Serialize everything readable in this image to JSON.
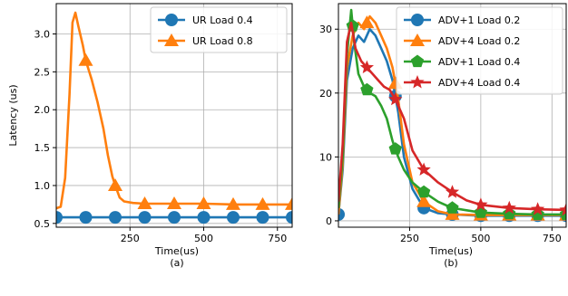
{
  "chart_data": [
    {
      "type": "line",
      "caption": "(a)",
      "xlabel": "Time(us)",
      "ylabel": "Latency (us)",
      "xlim": [
        0,
        800
      ],
      "ylim": [
        0.45,
        3.4
      ],
      "xticks": [
        250,
        500,
        750
      ],
      "yticks": [
        0.5,
        1.0,
        1.5,
        2.0,
        2.5,
        3.0
      ],
      "ytick_labels": [
        "0.5",
        "1.0",
        "1.5",
        "2.0",
        "2.5",
        "3.0"
      ],
      "grid": true,
      "legend": "top-right",
      "series": [
        {
          "name": "UR Load 0.4",
          "color": "#1f77b4",
          "marker": "circle",
          "x": [
            0,
            100,
            200,
            300,
            400,
            500,
            600,
            700,
            800
          ],
          "y": [
            0.58,
            0.58,
            0.58,
            0.58,
            0.58,
            0.58,
            0.58,
            0.58,
            0.58
          ],
          "marker_x": [
            0,
            100,
            200,
            300,
            400,
            500,
            600,
            700,
            800
          ]
        },
        {
          "name": "UR Load 0.8",
          "color": "#ff7f0e",
          "marker": "triangle",
          "x": [
            0,
            15,
            30,
            45,
            55,
            65,
            75,
            90,
            100,
            120,
            140,
            160,
            175,
            190,
            200,
            215,
            230,
            260,
            300,
            400,
            500,
            600,
            700,
            800
          ],
          "y": [
            0.7,
            0.72,
            1.1,
            2.2,
            3.15,
            3.28,
            3.1,
            2.85,
            2.65,
            2.4,
            2.1,
            1.75,
            1.4,
            1.12,
            1.0,
            0.84,
            0.79,
            0.77,
            0.76,
            0.76,
            0.76,
            0.75,
            0.75,
            0.75
          ],
          "marker_x": [
            100,
            200,
            300,
            400,
            500,
            600,
            700,
            800
          ]
        }
      ]
    },
    {
      "type": "line",
      "caption": "(b)",
      "xlabel": "Time(us)",
      "ylabel": "",
      "xlim": [
        0,
        800
      ],
      "ylim": [
        -1,
        34
      ],
      "xticks": [
        250,
        500,
        750
      ],
      "yticks": [
        0,
        10,
        20,
        30
      ],
      "ytick_labels": [
        "0",
        "10",
        "20",
        "30"
      ],
      "grid": true,
      "legend": "top-right",
      "series": [
        {
          "name": "ADV+1 Load 0.2",
          "color": "#1f77b4",
          "marker": "circle",
          "x": [
            0,
            15,
            30,
            50,
            70,
            90,
            110,
            130,
            150,
            170,
            190,
            210,
            230,
            260,
            300,
            350,
            400,
            500,
            600,
            700,
            800
          ],
          "y": [
            1,
            8,
            22,
            27,
            29,
            28,
            30,
            29,
            27,
            25,
            22,
            17,
            10,
            5,
            2,
            1.2,
            1,
            0.8,
            0.8,
            0.8,
            0.8
          ],
          "marker_x": [
            0,
            200,
            300,
            400,
            500,
            600,
            700,
            800
          ]
        },
        {
          "name": "ADV+4 Load 0.2",
          "color": "#ff7f0e",
          "marker": "triangle",
          "x": [
            0,
            15,
            30,
            50,
            70,
            90,
            110,
            130,
            150,
            170,
            190,
            210,
            230,
            260,
            300,
            350,
            400,
            500,
            600,
            700,
            800
          ],
          "y": [
            1,
            9,
            24,
            29,
            31,
            30,
            32,
            31,
            29,
            27,
            24,
            19,
            12,
            6,
            3,
            1.5,
            1,
            0.9,
            0.9,
            0.9,
            0.9
          ],
          "marker_x": [
            100,
            200,
            300,
            400,
            500,
            600,
            700,
            800
          ]
        },
        {
          "name": "ADV+1 Load 0.4",
          "color": "#2ca02c",
          "marker": "pentagon",
          "x": [
            0,
            15,
            30,
            45,
            55,
            70,
            90,
            110,
            130,
            150,
            170,
            190,
            210,
            230,
            260,
            300,
            350,
            400,
            500,
            600,
            700,
            800
          ],
          "y": [
            2,
            10,
            26,
            33,
            28,
            23,
            21,
            20,
            19.5,
            18,
            16,
            12.5,
            10,
            8,
            6,
            4.5,
            3,
            2,
            1.3,
            1.1,
            1,
            1
          ],
          "marker_x": [
            50,
            100,
            200,
            300,
            400,
            500,
            600,
            700,
            800
          ]
        },
        {
          "name": "ADV+4 Load 0.4",
          "color": "#d62728",
          "marker": "star",
          "x": [
            0,
            15,
            30,
            45,
            60,
            80,
            100,
            120,
            140,
            160,
            180,
            200,
            230,
            260,
            300,
            350,
            400,
            450,
            500,
            600,
            700,
            800
          ],
          "y": [
            3,
            12,
            28,
            31,
            27,
            25,
            24,
            23,
            22,
            21,
            20.5,
            19,
            16,
            11,
            8,
            6,
            4.5,
            3.2,
            2.5,
            2,
            1.8,
            1.7
          ],
          "marker_x": [
            100,
            200,
            300,
            400,
            500,
            600,
            700,
            800
          ]
        }
      ]
    }
  ]
}
